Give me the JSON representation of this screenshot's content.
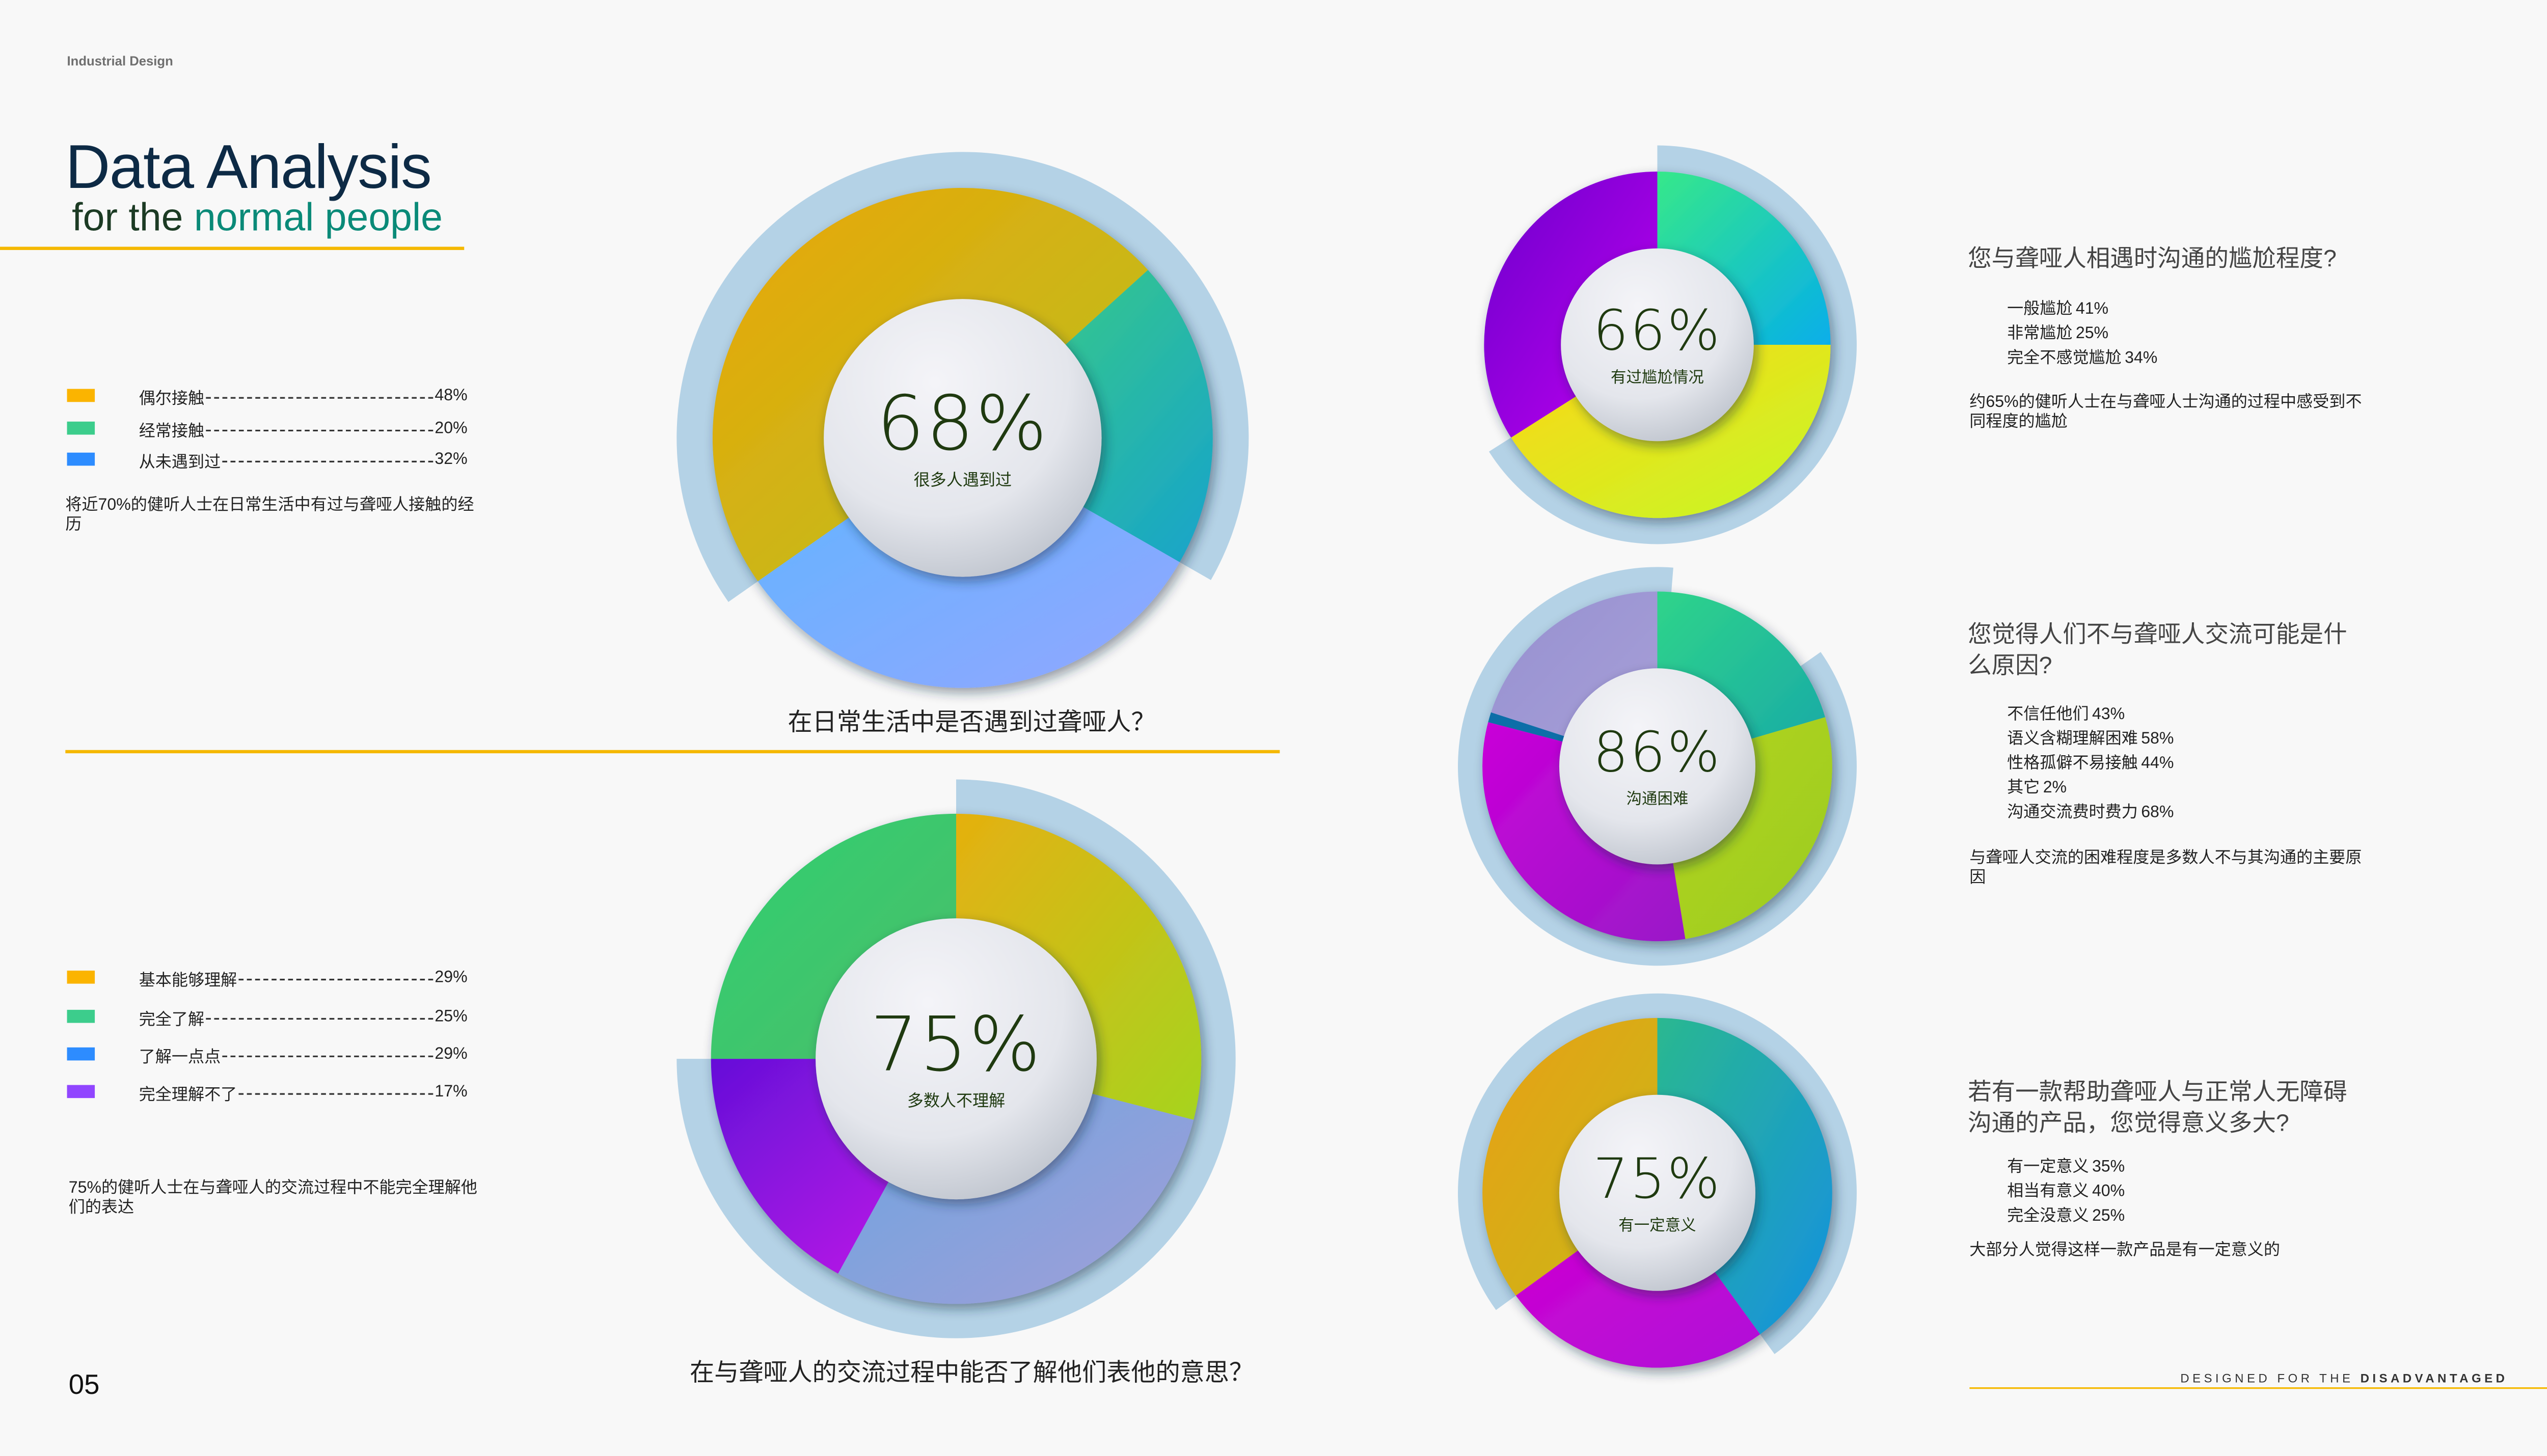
{
  "header": {
    "brand": "Industrial Design",
    "title": "Data Analysis",
    "subtitle_prefix": "for the",
    "subtitle_highlight": "normal people"
  },
  "page_number": "05",
  "footer": {
    "prefix": "DESIGNED FOR THE",
    "emphasis": "DISADVANTAGED"
  },
  "colors": {
    "accent_line": "#f5b800",
    "title": "#0d2a45",
    "highlight": "#0a8a78",
    "ring": "#b4d2e6"
  },
  "sections": [
    {
      "question": "在日常生活中是否遇到过聋哑人？",
      "legend": [
        {
          "label": "偶尔接触",
          "value": "48%",
          "color": "#fbb400"
        },
        {
          "label": "经常接触",
          "value": "20%",
          "color": "#3ccd8c"
        },
        {
          "label": "从未遇到过",
          "value": "32%",
          "color": "#2d8cff"
        }
      ],
      "note": "将近70%的健听人士在日常生活中有过与聋哑人接触的经历",
      "donut": {
        "center_value": "68%",
        "center_label": "很多人遇到过",
        "ring_percent": 68,
        "segments": [
          {
            "value": 48,
            "colors": [
              "#eaa60a",
              "#b5c21e"
            ]
          },
          {
            "value": 20,
            "colors": [
              "#3dd07c",
              "#17a3cc"
            ]
          },
          {
            "value": 32,
            "colors": [
              "#5fb5ff",
              "#93a6ff"
            ]
          }
        ]
      }
    },
    {
      "question": "在与聋哑人的交流过程中能否了解他们表他的意思？",
      "legend": [
        {
          "label": "基本能够理解",
          "value": "29%",
          "color": "#fbb400"
        },
        {
          "label": "完全了解",
          "value": "25%",
          "color": "#3ccd8c"
        },
        {
          "label": "了解一点点",
          "value": "29%",
          "color": "#2d8cff"
        },
        {
          "label": "完全理解不了",
          "value": "17%",
          "color": "#9146ff"
        }
      ],
      "note": "75%的健听人士在与聋哑人的交流过程中不能完全理解他们的表达",
      "donut": {
        "center_value": "75%",
        "center_label": "多数人不理解",
        "ring_percent": 75,
        "segments": [
          {
            "value": 29,
            "colors": [
              "#e5b010",
              "#a6d420"
            ]
          },
          {
            "value": 29,
            "colors": [
              "#6aa5e0",
              "#a29ed8"
            ]
          },
          {
            "value": 17,
            "colors": [
              "#6510d8",
              "#c418e8"
            ]
          },
          {
            "value": 25,
            "colors": [
              "#2fd070",
              "#4cbd6a"
            ]
          }
        ]
      }
    },
    {
      "question": "您与聋哑人相遇时沟通的尴尬程度?",
      "legend": [
        {
          "label": "一般尴尬",
          "value": "41%",
          "color": "#fbb400"
        },
        {
          "label": "非常尴尬",
          "value": "25%",
          "color": "#3ccd8c"
        },
        {
          "label": "完全不感觉尴尬",
          "value": "34%",
          "color": "#9146ff"
        }
      ],
      "note": "约65%的健听人士在与聋哑人士沟通的过程中感受到不同程度的尴尬",
      "donut": {
        "center_value": "66%",
        "center_label": "有过尴尬情况",
        "ring_percent": 66,
        "segments": [
          {
            "value": 25,
            "colors": [
              "#36e88a",
              "#06aeea"
            ]
          },
          {
            "value": 41,
            "colors": [
              "#fdd514",
              "#c4f928"
            ]
          },
          {
            "value": 34,
            "colors": [
              "#6c00cc",
              "#c000f0"
            ]
          }
        ]
      }
    },
    {
      "question": "您觉得人们不与聋哑人交流可能是什么原因?",
      "legend": [
        {
          "label": "不信任他们",
          "value": "43%",
          "color": "#9490d0"
        },
        {
          "label": "语义含糊理解困难",
          "value": "58%",
          "color": "#a8d420"
        },
        {
          "label": "性格孤僻不易接触",
          "value": "44%",
          "color": "#3ccd8c"
        },
        {
          "label": "其它",
          "value": "2%",
          "color": "#0a6ea8"
        },
        {
          "label": "沟通交流费时费力",
          "value": "68%",
          "color": "#c800d4"
        }
      ],
      "note": "与聋哑人交流的困难程度是多数人不与其沟通的主要原因",
      "donut": {
        "center_value": "86%",
        "center_label": "沟通困难",
        "ring_percent": 86,
        "segments": [
          {
            "value": 44,
            "colors": [
              "#2fd48a",
              "#18a8a8"
            ]
          },
          {
            "value": 58,
            "colors": [
              "#b5d41f",
              "#9acc20"
            ]
          },
          {
            "value": 68,
            "colors": [
              "#c900d8",
              "#9a18c8"
            ]
          },
          {
            "value": 2,
            "colors": [
              "#0a6ea8",
              "#0a6ea8"
            ]
          },
          {
            "value": 43,
            "colors": [
              "#9690d0",
              "#a8a0d8"
            ]
          }
        ]
      }
    },
    {
      "question": "若有一款帮助聋哑人与正常人无障碍沟通的产品，您觉得意义多大?",
      "legend": [
        {
          "label": "有一定意义",
          "value": "35%",
          "color": "#fbb400"
        },
        {
          "label": "相当有意义",
          "value": "40%",
          "color": "#2d8cff"
        },
        {
          "label": "完全没意义",
          "value": "25%",
          "color": "#c800d4"
        }
      ],
      "note": "大部分人觉得这样一款产品是有一定意义的",
      "donut": {
        "center_value": "75%",
        "center_label": "有一定意义",
        "ring_percent": 75,
        "segments": [
          {
            "value": 40,
            "colors": [
              "#2ab890",
              "#1590e0"
            ]
          },
          {
            "value": 25,
            "colors": [
              "#d000d0",
              "#b010d8"
            ]
          },
          {
            "value": 35,
            "colors": [
              "#e8a010",
              "#c8b818"
            ]
          }
        ]
      }
    }
  ]
}
